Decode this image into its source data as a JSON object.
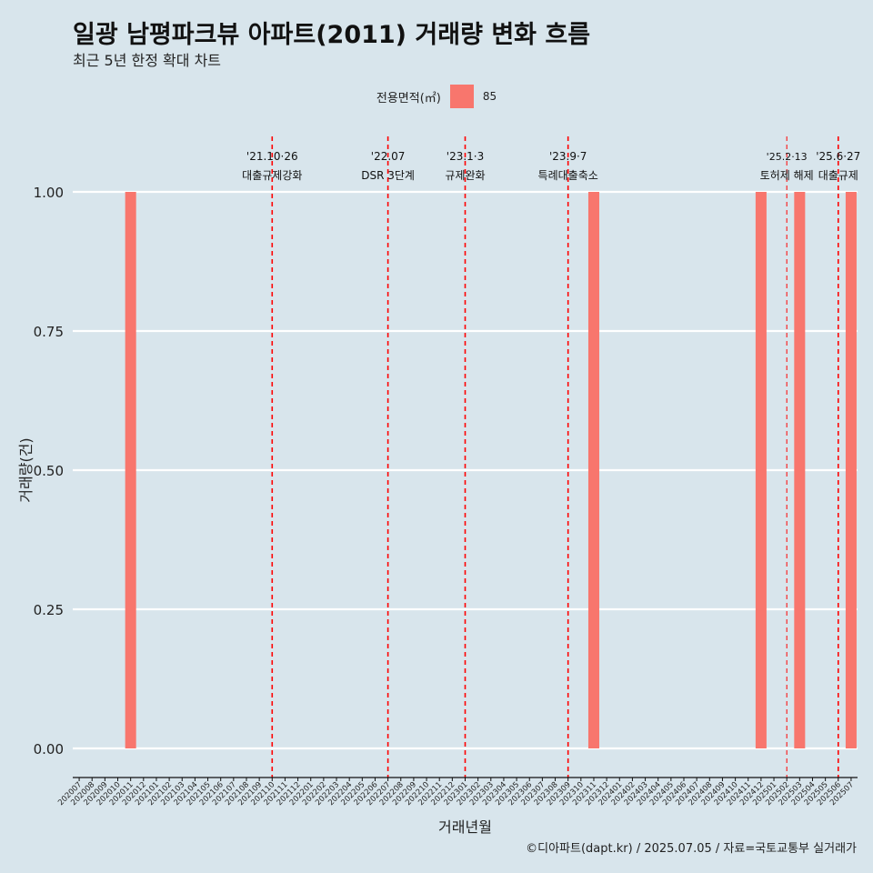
{
  "title": "일광 남평파크뷰 아파트(2011) 거래량 변화 흐름",
  "subtitle": "최근 5년 한정 확대 차트",
  "legend": {
    "title": "전용면적(㎡)",
    "entries": [
      {
        "label": "85",
        "color": "#f8766d"
      }
    ]
  },
  "caption": "©디아파트(dapt.kr) / 2025.07.05 / 자료=국토교통부 실거래가",
  "chart_data": {
    "type": "bar",
    "xlabel": "거래년월",
    "ylabel": "거래량(건)",
    "ylim": [
      0,
      1
    ],
    "yticks": [
      "0.00",
      "0.25",
      "0.50",
      "0.75",
      "1.00"
    ],
    "categories": [
      "202007",
      "202008",
      "202009",
      "202010",
      "202011",
      "202012",
      "202101",
      "202102",
      "202103",
      "202104",
      "202105",
      "202106",
      "202107",
      "202108",
      "202109",
      "202110",
      "202111",
      "202112",
      "202201",
      "202202",
      "202203",
      "202204",
      "202205",
      "202206",
      "202207",
      "202208",
      "202209",
      "202210",
      "202211",
      "202212",
      "202301",
      "202302",
      "202303",
      "202304",
      "202305",
      "202306",
      "202307",
      "202308",
      "202309",
      "202310",
      "202311",
      "202312",
      "202401",
      "202402",
      "202403",
      "202404",
      "202405",
      "202406",
      "202407",
      "202408",
      "202409",
      "202410",
      "202411",
      "202412",
      "202501",
      "202502",
      "202503",
      "202504",
      "202505",
      "202506",
      "202507"
    ],
    "series": [
      {
        "name": "85",
        "color": "#f8766d",
        "values": [
          0,
          0,
          0,
          0,
          1,
          0,
          0,
          0,
          0,
          0,
          0,
          0,
          0,
          0,
          0,
          0,
          0,
          0,
          0,
          0,
          0,
          0,
          0,
          0,
          0,
          0,
          0,
          0,
          0,
          0,
          0,
          0,
          0,
          0,
          0,
          0,
          0,
          0,
          0,
          0,
          1,
          0,
          0,
          0,
          0,
          0,
          0,
          0,
          0,
          0,
          0,
          0,
          0,
          1,
          0,
          0,
          1,
          0,
          0,
          0,
          1
        ]
      }
    ],
    "annotations": [
      {
        "x": "202110",
        "date": "'21.10·26",
        "label": "대출규제강화"
      },
      {
        "x": "202207",
        "date": "'22.07",
        "label": "DSR 3단계"
      },
      {
        "x": "202301",
        "date": "'23.1·3",
        "label": "규제완화"
      },
      {
        "x": "202309",
        "date": "'23.9·7",
        "label": "특례대출축소"
      },
      {
        "x": "202502",
        "date": "'25.2·13",
        "label": "토허제 해제"
      },
      {
        "x": "202506",
        "date": "'25.6·27",
        "label": "대출규제"
      }
    ],
    "grid": true,
    "legend_position": "top"
  }
}
